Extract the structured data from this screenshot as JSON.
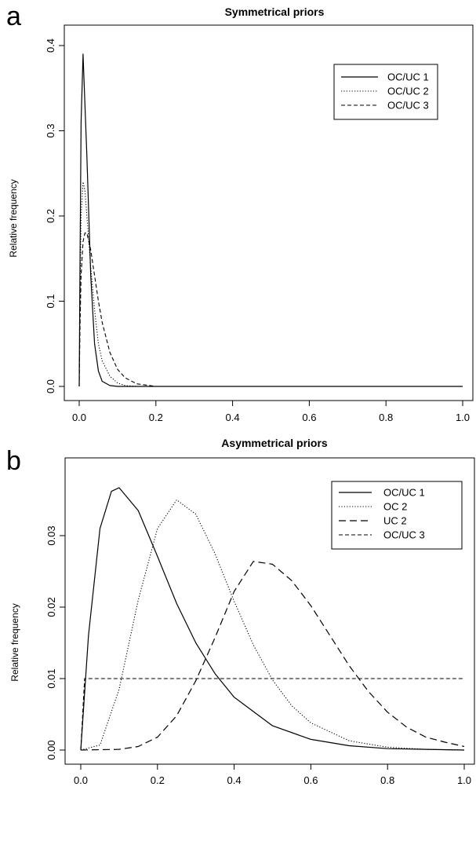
{
  "panels": [
    {
      "letter": "a"
    },
    {
      "letter": "b"
    }
  ],
  "chart_data": [
    {
      "type": "line",
      "title": "Symmetrical priors",
      "xlabel": "",
      "ylabel": "Relative frequency",
      "xlim": [
        0,
        1
      ],
      "ylim": [
        0,
        0.4
      ],
      "x_ticks": [
        "0.0",
        "0.2",
        "0.4",
        "0.6",
        "0.8",
        "1.0"
      ],
      "y_ticks": [
        "0.0",
        "0.1",
        "0.2",
        "0.3",
        "0.4"
      ],
      "legend_position": "top-right",
      "series": [
        {
          "name": "OC/UC 1",
          "line_style": "solid",
          "x": [
            0,
            0.002,
            0.005,
            0.01,
            0.02,
            0.03,
            0.04,
            0.05,
            0.06,
            0.08,
            0.1,
            0.15,
            0.2,
            1.0
          ],
          "values": [
            0,
            0.14,
            0.31,
            0.39,
            0.27,
            0.13,
            0.05,
            0.018,
            0.006,
            0.001,
            0.0,
            0.0,
            0.0,
            0.0
          ]
        },
        {
          "name": "OC/UC 2",
          "line_style": "dotted",
          "x": [
            0,
            0.002,
            0.005,
            0.01,
            0.015,
            0.02,
            0.03,
            0.04,
            0.05,
            0.06,
            0.08,
            0.1,
            0.12,
            0.15,
            0.2,
            1.0
          ],
          "values": [
            0,
            0.09,
            0.2,
            0.24,
            0.23,
            0.2,
            0.14,
            0.09,
            0.05,
            0.03,
            0.012,
            0.004,
            0.001,
            0.0,
            0.0,
            0.0
          ]
        },
        {
          "name": "OC/UC 3",
          "line_style": "dashed",
          "x": [
            0,
            0.002,
            0.005,
            0.01,
            0.015,
            0.02,
            0.03,
            0.04,
            0.05,
            0.06,
            0.08,
            0.1,
            0.12,
            0.15,
            0.2,
            1.0
          ],
          "values": [
            0,
            0.07,
            0.13,
            0.17,
            0.18,
            0.18,
            0.16,
            0.13,
            0.1,
            0.075,
            0.04,
            0.02,
            0.01,
            0.003,
            0.0,
            0.0
          ]
        }
      ]
    },
    {
      "type": "line",
      "title": "Asymmetrical priors",
      "xlabel": "",
      "ylabel": "Relative frequency",
      "xlim": [
        0,
        1
      ],
      "ylim": [
        0,
        0.036
      ],
      "x_ticks": [
        "0.0",
        "0.2",
        "0.4",
        "0.6",
        "0.8",
        "1.0"
      ],
      "y_ticks": [
        "0.00",
        "0.01",
        "0.02",
        "0.03"
      ],
      "legend_position": "top-right",
      "series": [
        {
          "name": "OC/UC 1",
          "line_style": "solid",
          "x": [
            0,
            0.02,
            0.05,
            0.08,
            0.1,
            0.15,
            0.2,
            0.25,
            0.3,
            0.35,
            0.4,
            0.5,
            0.6,
            0.7,
            0.8,
            0.9,
            1.0
          ],
          "values": [
            0,
            0.016,
            0.031,
            0.0362,
            0.0367,
            0.0335,
            0.0271,
            0.0205,
            0.015,
            0.0107,
            0.0074,
            0.0034,
            0.0015,
            0.0006,
            0.0002,
            0.0001,
            0.0
          ]
        },
        {
          "name": "OC 2",
          "line_style": "dotted",
          "x": [
            0,
            0.05,
            0.1,
            0.15,
            0.2,
            0.25,
            0.3,
            0.35,
            0.4,
            0.45,
            0.5,
            0.55,
            0.6,
            0.7,
            0.8,
            0.9,
            1.0
          ],
          "values": [
            0,
            0.0007,
            0.0085,
            0.021,
            0.031,
            0.035,
            0.033,
            0.0275,
            0.0208,
            0.0147,
            0.0098,
            0.0062,
            0.0038,
            0.0013,
            0.0004,
            0.0001,
            0.0
          ]
        },
        {
          "name": "UC 2",
          "line_style": "long-dashed",
          "x": [
            0,
            0.1,
            0.15,
            0.2,
            0.25,
            0.3,
            0.35,
            0.4,
            0.45,
            0.5,
            0.55,
            0.6,
            0.65,
            0.7,
            0.75,
            0.8,
            0.85,
            0.9,
            0.95,
            1.0
          ],
          "values": [
            0,
            0.0001,
            0.0005,
            0.0018,
            0.0048,
            0.0097,
            0.0157,
            0.0222,
            0.0264,
            0.026,
            0.0237,
            0.0202,
            0.016,
            0.0118,
            0.0082,
            0.0053,
            0.0032,
            0.0018,
            0.0011,
            0.0005
          ]
        },
        {
          "name": "OC/UC 3",
          "line_style": "dashed",
          "x": [
            0,
            0.01,
            1.0
          ],
          "values": [
            0,
            0.01,
            0.01
          ]
        }
      ]
    }
  ]
}
